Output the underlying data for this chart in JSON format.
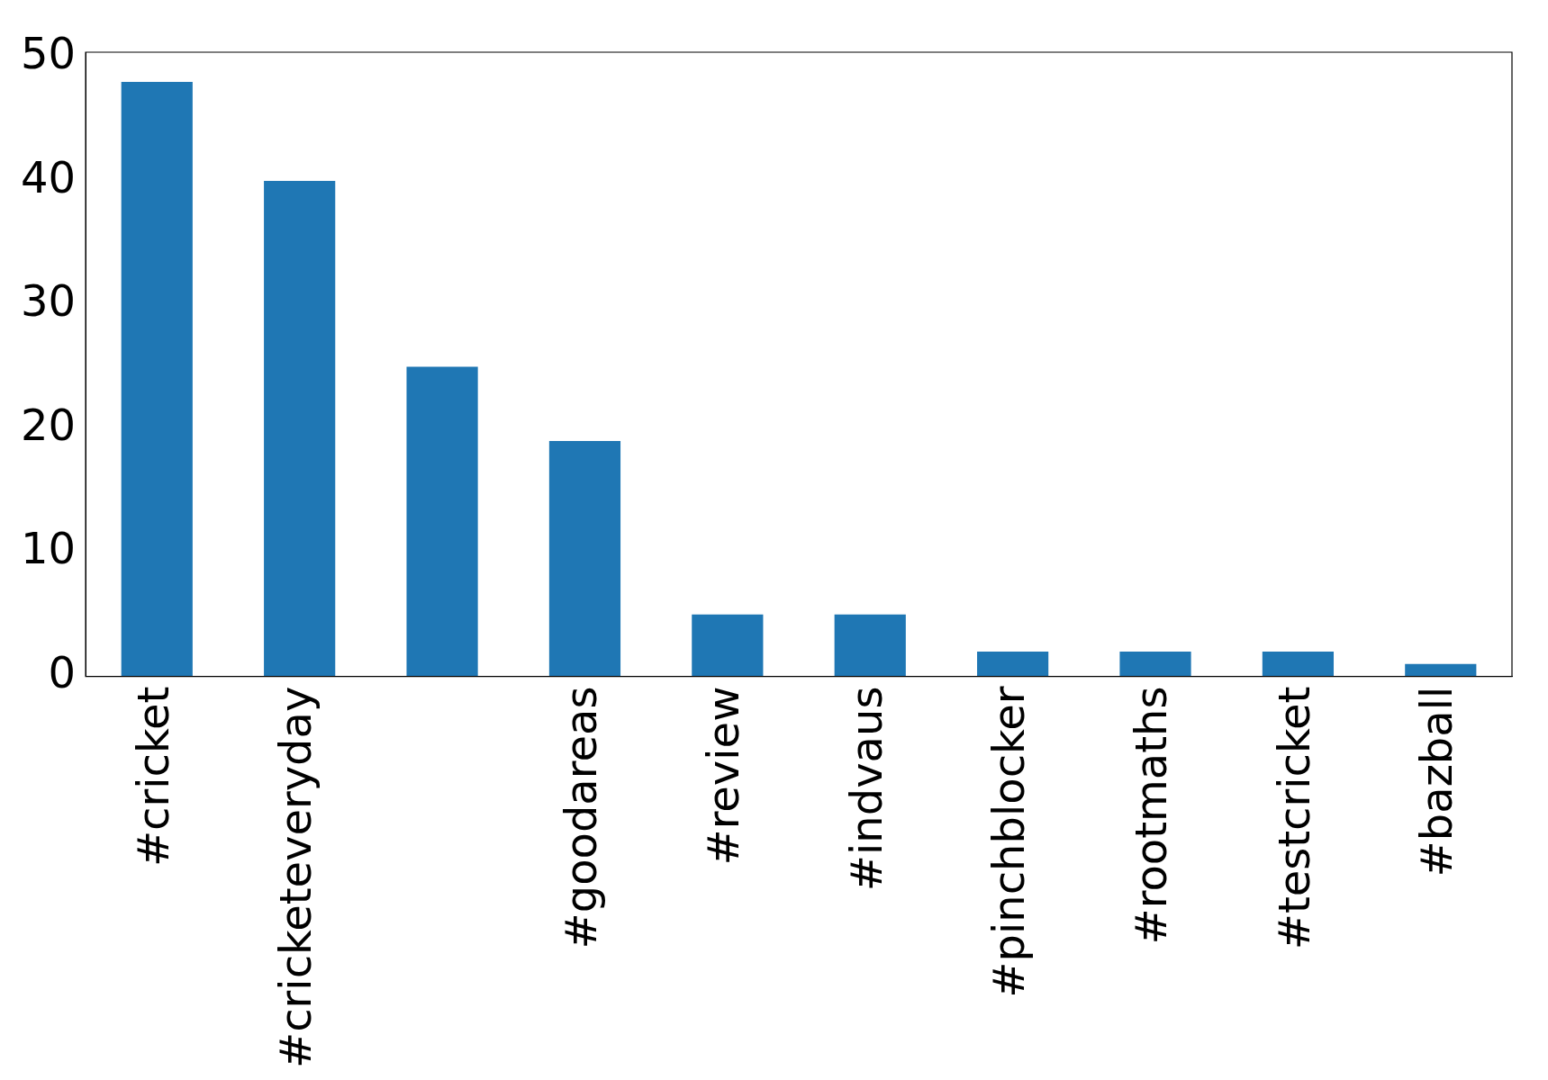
{
  "chart_data": {
    "type": "bar",
    "categories": [
      "#cricket",
      "#cricketeveryday",
      null,
      "#goodareas",
      "#review",
      "#indvaus",
      "#pinchblocker",
      "#rootmaths",
      "#testcricket",
      "#bazball"
    ],
    "values": [
      48,
      40,
      25,
      19,
      5,
      5,
      2,
      2,
      2,
      1
    ],
    "color": "#1f77b4",
    "ylim": [
      0,
      50.4
    ],
    "yticks": [
      0,
      10,
      20,
      30,
      40,
      50
    ],
    "grid": false,
    "legend": false
  }
}
